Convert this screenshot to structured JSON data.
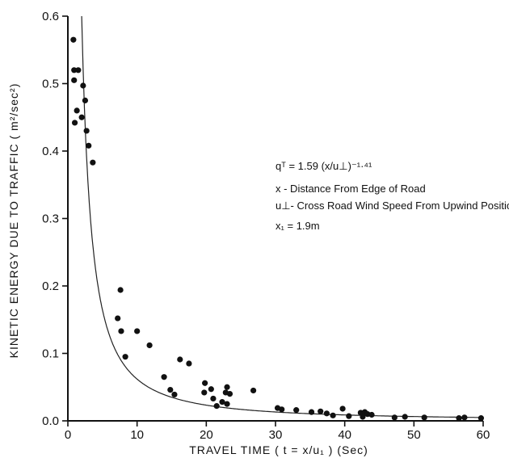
{
  "chart_data": {
    "type": "scatter",
    "xlabel": "TRAVEL TIME ( t = x/u₁ ) (Sec)",
    "ylabel": "KINETIC ENERGY DUE TO TRAFFIC ( m²/sec²)",
    "xlim": [
      0,
      60
    ],
    "ylim": [
      0,
      0.6
    ],
    "x_ticks": [
      0,
      10,
      20,
      30,
      40,
      50,
      60
    ],
    "x_tick_labels": [
      "0",
      "10",
      "20",
      "30",
      "40",
      "50",
      "60"
    ],
    "y_ticks": [
      0,
      0.1,
      0.2,
      0.3,
      0.4,
      0.5,
      0.6
    ],
    "y_tick_labels": [
      "0.0",
      "0.1",
      "0.2",
      "0.3",
      "0.4",
      "0.5",
      "0.6"
    ],
    "grid": false,
    "annotations": [
      {
        "id": "equation",
        "text": "qᵀ = 1.59 (x/u⊥)⁻¹·⁴¹"
      },
      {
        "id": "x_def",
        "text": "x - Distance From Edge of Road"
      },
      {
        "id": "u_def",
        "text": "u⊥- Cross Road Wind Speed From Upwind Position"
      },
      {
        "id": "x1",
        "text": "x₁ = 1.9m"
      }
    ],
    "fit_curve": {
      "coefficient": 1.59,
      "exponent": -1.41
    },
    "points": [
      {
        "x": 0.8,
        "y": 0.565
      },
      {
        "x": 0.9,
        "y": 0.52
      },
      {
        "x": 1.5,
        "y": 0.52
      },
      {
        "x": 0.9,
        "y": 0.505
      },
      {
        "x": 2.2,
        "y": 0.497
      },
      {
        "x": 1.3,
        "y": 0.46
      },
      {
        "x": 2.5,
        "y": 0.475
      },
      {
        "x": 2.0,
        "y": 0.45
      },
      {
        "x": 1.0,
        "y": 0.442
      },
      {
        "x": 2.7,
        "y": 0.43
      },
      {
        "x": 3.0,
        "y": 0.408
      },
      {
        "x": 3.6,
        "y": 0.383
      },
      {
        "x": 7.6,
        "y": 0.194
      },
      {
        "x": 7.2,
        "y": 0.152
      },
      {
        "x": 7.7,
        "y": 0.133
      },
      {
        "x": 10.0,
        "y": 0.133
      },
      {
        "x": 11.8,
        "y": 0.112
      },
      {
        "x": 8.3,
        "y": 0.095
      },
      {
        "x": 16.2,
        "y": 0.091
      },
      {
        "x": 17.5,
        "y": 0.085
      },
      {
        "x": 13.9,
        "y": 0.065
      },
      {
        "x": 14.8,
        "y": 0.046
      },
      {
        "x": 15.4,
        "y": 0.039
      },
      {
        "x": 19.8,
        "y": 0.056
      },
      {
        "x": 20.7,
        "y": 0.047
      },
      {
        "x": 19.7,
        "y": 0.042
      },
      {
        "x": 21.0,
        "y": 0.033
      },
      {
        "x": 21.5,
        "y": 0.022
      },
      {
        "x": 22.3,
        "y": 0.028
      },
      {
        "x": 22.8,
        "y": 0.042
      },
      {
        "x": 23.0,
        "y": 0.05
      },
      {
        "x": 23.4,
        "y": 0.04
      },
      {
        "x": 23.0,
        "y": 0.025
      },
      {
        "x": 26.8,
        "y": 0.045
      },
      {
        "x": 30.3,
        "y": 0.019
      },
      {
        "x": 30.9,
        "y": 0.017
      },
      {
        "x": 33.0,
        "y": 0.016
      },
      {
        "x": 35.2,
        "y": 0.013
      },
      {
        "x": 36.5,
        "y": 0.014
      },
      {
        "x": 37.4,
        "y": 0.011
      },
      {
        "x": 39.7,
        "y": 0.018
      },
      {
        "x": 38.3,
        "y": 0.008
      },
      {
        "x": 40.6,
        "y": 0.007
      },
      {
        "x": 42.3,
        "y": 0.012
      },
      {
        "x": 42.9,
        "y": 0.013
      },
      {
        "x": 43.3,
        "y": 0.01
      },
      {
        "x": 43.9,
        "y": 0.009
      },
      {
        "x": 42.6,
        "y": 0.006
      },
      {
        "x": 47.2,
        "y": 0.005
      },
      {
        "x": 48.7,
        "y": 0.006
      },
      {
        "x": 51.5,
        "y": 0.005
      },
      {
        "x": 56.5,
        "y": 0.004
      },
      {
        "x": 57.3,
        "y": 0.005
      },
      {
        "x": 59.7,
        "y": 0.004
      }
    ]
  }
}
